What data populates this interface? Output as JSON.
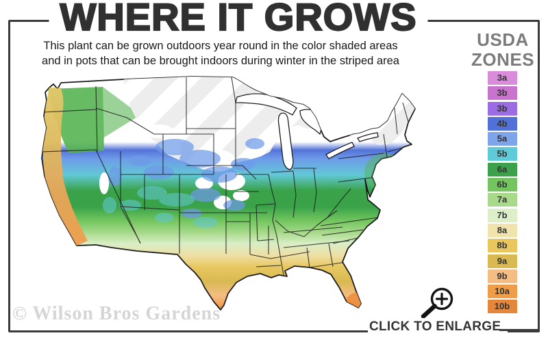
{
  "graphic": {
    "title": "WHERE IT GROWS",
    "subtitle_line1": "This plant can be grown outdoors year round in the color shaded areas",
    "subtitle_line2": "and in pots that can be brought indoors during winter in the striped area"
  },
  "legend": {
    "heading_line1": "USDA",
    "heading_line2": "ZONES",
    "zones": [
      {
        "label": "3a",
        "color": "#d88cda"
      },
      {
        "label": "3b",
        "color": "#c873cd"
      },
      {
        "label": "3b",
        "color": "#9b6ce4"
      },
      {
        "label": "4b",
        "color": "#5271d8"
      },
      {
        "label": "5a",
        "color": "#7ea4ec"
      },
      {
        "label": "5b",
        "color": "#60cbd8"
      },
      {
        "label": "6a",
        "color": "#3da14b"
      },
      {
        "label": "6b",
        "color": "#74c55f"
      },
      {
        "label": "7a",
        "color": "#a9da8c"
      },
      {
        "label": "7b",
        "color": "#dcefc8"
      },
      {
        "label": "8a",
        "color": "#f0e3ac"
      },
      {
        "label": "8b",
        "color": "#e9c75e"
      },
      {
        "label": "9a",
        "color": "#d9b952"
      },
      {
        "label": "9b",
        "color": "#f4bd83"
      },
      {
        "label": "10a",
        "color": "#f09d4a"
      },
      {
        "label": "10b",
        "color": "#e5873b"
      }
    ]
  },
  "map": {
    "region": "continental-united-states"
  },
  "footer": {
    "watermark": "© Wilson Bros Gardens",
    "enlarge_label": "CLICK TO ENLARGE"
  },
  "colors": {
    "frame": "#3a3a3a",
    "title_text": "#303030",
    "legend_heading_text": "#7b7b7b",
    "watermark_text": "#d5d5d5"
  }
}
